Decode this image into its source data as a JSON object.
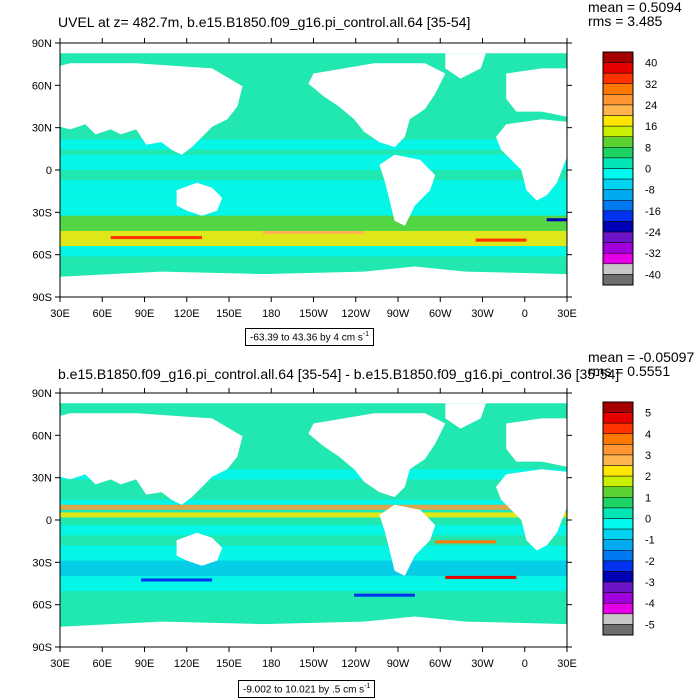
{
  "panels": [
    {
      "title": "UVEL at z= 482.7m, b.e15.B1850.f09_g16.pi_control.all.64 [35-54]",
      "mean": "mean = 0.5094",
      "rms": "rms = 3.485",
      "lat_labels": [
        "90N",
        "60N",
        "30N",
        "0",
        "30S",
        "60S",
        "90S"
      ],
      "lon_labels": [
        "30E",
        "60E",
        "90E",
        "120E",
        "150E",
        "180",
        "150W",
        "120W",
        "90W",
        "60W",
        "30W",
        "0",
        "30E"
      ],
      "colorbar_labels": [
        "40",
        "32",
        "24",
        "16",
        "8",
        "0",
        "-8",
        "-16",
        "-24",
        "-32",
        "-40"
      ],
      "range_text": "-63.39 to 43.36 by 4 cm s",
      "range_unit_exp": "-1"
    },
    {
      "title": "b.e15.B1850.f09_g16.pi_control.all.64 [35-54] - b.e15.B1850.f09_g16.pi_control.36 [35-54]",
      "mean": "mean = -0.05097",
      "rms": "rms = 0.5551",
      "lat_labels": [
        "90N",
        "60N",
        "30N",
        "0",
        "30S",
        "60S",
        "90S"
      ],
      "lon_labels": [
        "30E",
        "60E",
        "90E",
        "120E",
        "150E",
        "180",
        "150W",
        "120W",
        "90W",
        "60W",
        "30W",
        "0",
        "30E"
      ],
      "colorbar_labels": [
        "5",
        "4",
        "3",
        "2",
        "1",
        "0",
        "-1",
        "-2",
        "-3",
        "-4",
        "-5"
      ],
      "range_text": "-9.002 to 10.021 by .5 cm s",
      "range_unit_exp": "-1"
    }
  ],
  "colors": {
    "colorbar": [
      "#a50000",
      "#e60000",
      "#ff3200",
      "#ff7800",
      "#ff9632",
      "#ffb450",
      "#ffe600",
      "#c8f000",
      "#5ad232",
      "#1ed264",
      "#00e6b4",
      "#00faf0",
      "#00d2f0",
      "#00aaf0",
      "#0078f0",
      "#0032f0",
      "#0000b4",
      "#6e14c8",
      "#a000dc",
      "#e600e6",
      "#c8c8c8",
      "#6e6e6e"
    ],
    "ocean_main": "#21e7b1",
    "ocean_cyan": "#00f7f1",
    "ocean_green": "#5ad232",
    "land": "#ffffff"
  }
}
